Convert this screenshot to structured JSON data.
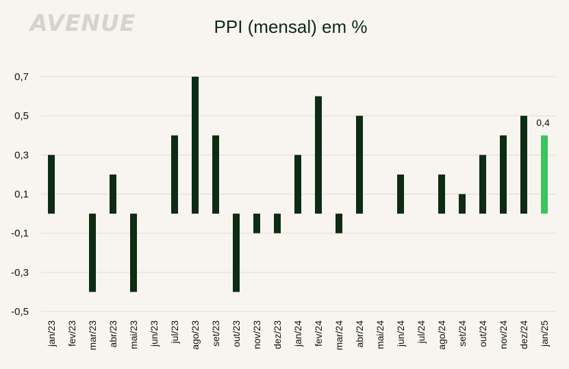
{
  "logo": "AVENUE",
  "chart_data": {
    "type": "bar",
    "title": "PPI (mensal) em %",
    "xlabel": "",
    "ylabel": "",
    "ylim": [
      -0.5,
      0.7
    ],
    "yticks": [
      -0.5,
      -0.3,
      -0.1,
      0.1,
      0.3,
      0.5,
      0.7
    ],
    "ytick_labels": [
      "-0,5",
      "-0,3",
      "-0,1",
      "0,1",
      "0,3",
      "0,5",
      "0,7"
    ],
    "grid": true,
    "categories": [
      "jan/23",
      "fev/23",
      "mar/23",
      "abr/23",
      "mai/23",
      "jun/23",
      "jul/23",
      "ago/23",
      "set/23",
      "out/23",
      "nov/23",
      "dez/23",
      "jan/24",
      "fev/24",
      "mar/24",
      "abr/24",
      "mai/24",
      "jun/24",
      "jul/24",
      "ago/24",
      "set/24",
      "out/24",
      "nov/24",
      "dez/24",
      "jan/25"
    ],
    "values": [
      0.3,
      0.0,
      -0.4,
      0.2,
      -0.4,
      0.0,
      0.4,
      0.7,
      0.4,
      -0.4,
      -0.1,
      -0.1,
      0.3,
      0.6,
      -0.1,
      0.5,
      0.0,
      0.2,
      0.0,
      0.2,
      0.1,
      0.3,
      0.4,
      0.5,
      0.4
    ],
    "highlight_index": 24,
    "highlight_label": "0,4",
    "colors": {
      "bar": "#0d2c12",
      "highlight": "#3dc45e",
      "grid": "#e5dbd2"
    }
  }
}
